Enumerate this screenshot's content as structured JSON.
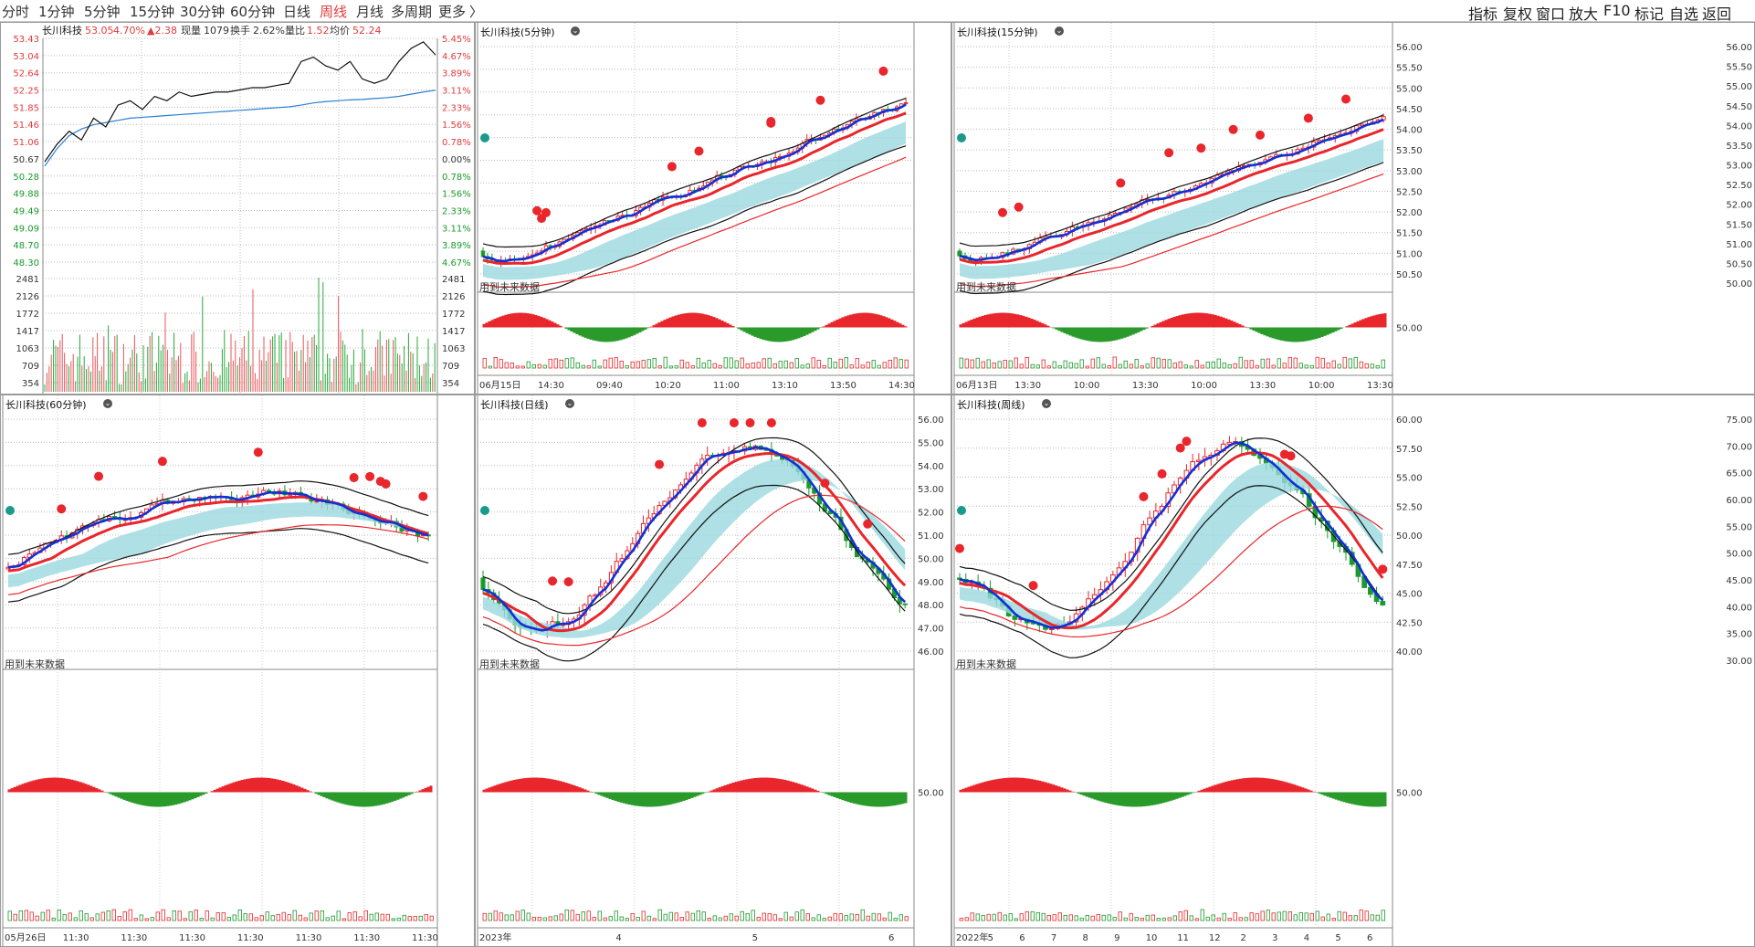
{
  "topbar": {
    "tabs": [
      "分时",
      "1分钟",
      "5分钟",
      "15分钟",
      "30分钟",
      "60分钟",
      "日线",
      "周线",
      "月线",
      "多周期",
      "更多"
    ],
    "active_tab": "周线",
    "more_arrow": "〉",
    "right_items": [
      "指标",
      "复权",
      "窗口",
      "放大",
      "F10",
      "标记",
      "自选",
      "返回"
    ]
  },
  "intraday": {
    "name": "长川科技",
    "last": "53.05",
    "change_pct": "4.70%",
    "change": "▲2.38",
    "volume_label": "现量",
    "volume": "1079",
    "turnover_label": "换手",
    "turnover": "2.62%",
    "vol_ratio_label": "量比",
    "vol_ratio": "1.52",
    "avg_label": "均价",
    "avg": "52.24",
    "price_ticks": [
      "53.43",
      "53.04",
      "52.64",
      "52.25",
      "51.85",
      "51.46",
      "51.06",
      "50.67",
      "50.28",
      "49.88",
      "49.49",
      "49.09",
      "48.70",
      "48.30"
    ],
    "pct_ticks": [
      "5.45%",
      "4.67%",
      "3.89%",
      "3.11%",
      "2.33%",
      "1.56%",
      "0.78%",
      "0.00%",
      "0.78%",
      "1.56%",
      "2.33%",
      "3.11%",
      "3.89%",
      "4.67%"
    ],
    "vol_ticks": [
      "2481",
      "2126",
      "1772",
      "1417",
      "1063",
      "709",
      "354"
    ],
    "price_line": [
      50.6,
      51.0,
      51.3,
      51.1,
      51.6,
      51.4,
      51.9,
      52.0,
      51.8,
      52.1,
      52.0,
      52.2,
      52.1,
      52.15,
      52.2,
      52.2,
      52.25,
      52.3,
      52.3,
      52.35,
      52.4,
      52.9,
      53.0,
      52.8,
      52.7,
      52.9,
      52.5,
      52.4,
      52.5,
      52.9,
      53.2,
      53.35,
      53.05
    ],
    "avg_line": [
      50.5,
      50.9,
      51.2,
      51.35,
      51.45,
      51.5,
      51.55,
      51.6,
      51.62,
      51.64,
      51.66,
      51.68,
      51.7,
      51.72,
      51.74,
      51.76,
      51.78,
      51.8,
      51.82,
      51.84,
      51.86,
      51.9,
      51.95,
      51.98,
      52.0,
      52.02,
      52.03,
      52.05,
      52.07,
      52.1,
      52.15,
      52.2,
      52.24
    ]
  },
  "panels": {
    "m5": {
      "title": "长川科技(5分钟)",
      "future_label": "用到未来数据",
      "price_ticks": [],
      "dates": [
        "06月15日",
        "14:30",
        "09:40",
        "10:20",
        "11:00",
        "13:10",
        "13:50",
        "14:30"
      ]
    },
    "m15": {
      "title": "长川科技(15分钟)",
      "future_label": "用到未来数据",
      "price_ticks": [
        "56.00",
        "55.50",
        "55.00",
        "54.50",
        "54.00",
        "53.50",
        "53.00",
        "52.50",
        "52.00",
        "51.50",
        "51.00",
        "50.50"
      ],
      "right_ticks": [
        "56.00",
        "55.50",
        "55.00",
        "54.50",
        "54.00",
        "53.50",
        "53.00",
        "52.50",
        "52.00",
        "51.50",
        "51.00",
        "50.50",
        "50.00"
      ],
      "osc_tick": "50.00",
      "dates": [
        "06月13日",
        "13:30",
        "10:00",
        "13:30",
        "10:00",
        "13:30",
        "10:00",
        "13:30"
      ]
    },
    "m60": {
      "title": "长川科技(60分钟)",
      "future_label": "用到未来数据",
      "dates": [
        "05月26日",
        "11:30",
        "11:30",
        "11:30",
        "11:30",
        "11:30",
        "11:30",
        "11:30"
      ]
    },
    "day": {
      "title": "长川科技(日线)",
      "future_label": "用到未来数据",
      "price_ticks": [
        "56.00",
        "55.00",
        "54.00",
        "53.00",
        "52.00",
        "51.00",
        "50.00",
        "49.00",
        "48.00",
        "47.00",
        "46.00"
      ],
      "osc_tick": "50.00",
      "dates": [
        "2023年",
        "4",
        "5",
        "6"
      ]
    },
    "week": {
      "title": "长川科技(周线)",
      "future_label": "用到未来数据",
      "price_ticks": [
        "60.00",
        "57.50",
        "55.00",
        "52.50",
        "50.00",
        "47.50",
        "45.00",
        "42.50",
        "40.00"
      ],
      "right_ticks": [
        "75.00",
        "70.00",
        "65.00",
        "60.00",
        "55.00",
        "50.00",
        "45.00",
        "40.00",
        "35.00",
        "30.00"
      ],
      "osc_tick": "50.00",
      "dates": [
        "2022年",
        "5",
        "6",
        "7",
        "8",
        "9",
        "10",
        "11",
        "12",
        "2",
        "3",
        "4",
        "5",
        "6"
      ]
    }
  },
  "colors": {
    "up": "#e8262b",
    "down": "#1a9a2a",
    "zigzag": "#1030d8",
    "cloud": "#9ad8df",
    "cloud_green": "#88dd88"
  }
}
